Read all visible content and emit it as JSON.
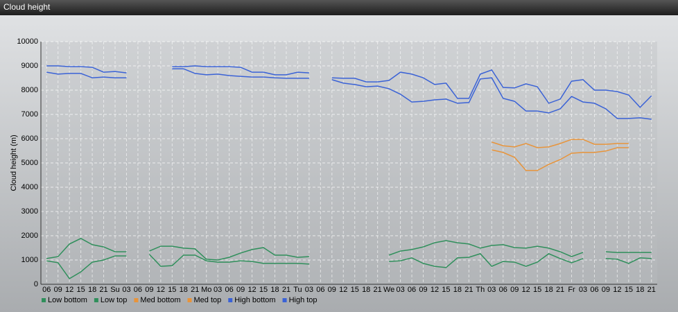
{
  "chart_data": {
    "type": "line",
    "title": "Cloud height",
    "y_label": "Cloud height (m)",
    "categories": [
      "06",
      "09",
      "12",
      "15",
      "18",
      "21",
      "Su",
      "03",
      "06",
      "09",
      "12",
      "15",
      "18",
      "21",
      "Mo",
      "03",
      "06",
      "09",
      "12",
      "15",
      "18",
      "21",
      "Tu",
      "03",
      "06",
      "09",
      "12",
      "15",
      "18",
      "21",
      "We",
      "03",
      "06",
      "09",
      "12",
      "15",
      "18",
      "21",
      "Th",
      "03",
      "06",
      "09",
      "12",
      "15",
      "18",
      "21",
      "Fr",
      "03",
      "06",
      "09",
      "12",
      "15",
      "18",
      "21"
    ],
    "ylim": [
      0,
      10000
    ],
    "yticks": [
      0,
      1000,
      2000,
      3000,
      4000,
      5000,
      6000,
      7000,
      8000,
      9000,
      10000
    ],
    "grid": true,
    "legend": "bottom-left",
    "series": [
      {
        "name": "Low bottom",
        "color": "#2f8f5b",
        "values": [
          970,
          890,
          230,
          510,
          910,
          1000,
          1170,
          1170,
          null,
          1230,
          740,
          770,
          1200,
          1200,
          970,
          910,
          910,
          970,
          940,
          860,
          860,
          860,
          860,
          830,
          null,
          null,
          null,
          null,
          null,
          null,
          940,
          970,
          1090,
          860,
          740,
          690,
          1090,
          1110,
          1260,
          740,
          940,
          910,
          740,
          910,
          1260,
          1060,
          890,
          1060,
          null,
          1060,
          1030,
          860,
          1090,
          1060
        ]
      },
      {
        "name": "Low top",
        "color": "#2f8f5b",
        "values": [
          1060,
          1140,
          1660,
          1890,
          1630,
          1540,
          1340,
          1340,
          null,
          1370,
          1570,
          1570,
          1490,
          1460,
          1030,
          1000,
          1110,
          1290,
          1430,
          1510,
          1200,
          1200,
          1110,
          1140,
          null,
          null,
          null,
          null,
          null,
          null,
          1200,
          1370,
          1430,
          1540,
          1710,
          1800,
          1710,
          1660,
          1490,
          1600,
          1630,
          1510,
          1490,
          1570,
          1490,
          1340,
          1140,
          1310,
          null,
          1340,
          1310,
          1310,
          1310,
          1310
        ]
      },
      {
        "name": "Med bottom",
        "color": "#e8943a",
        "values": [
          null,
          null,
          null,
          null,
          null,
          null,
          null,
          null,
          null,
          null,
          null,
          null,
          null,
          null,
          null,
          null,
          null,
          null,
          null,
          null,
          null,
          null,
          null,
          null,
          null,
          null,
          null,
          null,
          null,
          null,
          null,
          null,
          null,
          null,
          null,
          null,
          null,
          null,
          null,
          5540,
          5430,
          5230,
          4690,
          4690,
          4940,
          5140,
          5400,
          5430,
          5430,
          5490,
          5630,
          5630,
          null,
          null
        ]
      },
      {
        "name": "Med top",
        "color": "#e8943a",
        "values": [
          null,
          null,
          null,
          null,
          null,
          null,
          null,
          null,
          null,
          null,
          null,
          null,
          null,
          null,
          null,
          null,
          null,
          null,
          null,
          null,
          null,
          null,
          null,
          null,
          null,
          null,
          null,
          null,
          null,
          null,
          null,
          null,
          null,
          null,
          null,
          null,
          null,
          null,
          null,
          5860,
          5710,
          5660,
          5800,
          5630,
          5660,
          5800,
          5970,
          5970,
          5770,
          5770,
          5800,
          5800,
          null,
          null
        ]
      },
      {
        "name": "High bottom",
        "color": "#3a62d6",
        "values": [
          8740,
          8660,
          8690,
          8690,
          8510,
          8540,
          8510,
          8510,
          null,
          null,
          null,
          8880,
          8880,
          8690,
          8630,
          8660,
          8600,
          8570,
          8540,
          8540,
          8510,
          8490,
          8490,
          8490,
          null,
          8430,
          8290,
          8230,
          8140,
          8170,
          8060,
          7830,
          7510,
          7540,
          7600,
          7630,
          7460,
          7490,
          8460,
          8510,
          7660,
          7540,
          7140,
          7140,
          7060,
          7230,
          7740,
          7510,
          7460,
          7230,
          6830,
          6830,
          6860,
          6800
        ]
      },
      {
        "name": "High top",
        "color": "#3a62d6",
        "values": [
          9000,
          9000,
          8970,
          8970,
          8940,
          8740,
          8770,
          8710,
          null,
          null,
          null,
          8970,
          8970,
          9000,
          8970,
          8970,
          8970,
          8940,
          8740,
          8740,
          8630,
          8630,
          8740,
          8710,
          null,
          8510,
          8490,
          8490,
          8340,
          8340,
          8400,
          8740,
          8660,
          8510,
          8230,
          8290,
          7660,
          7660,
          8660,
          8830,
          8110,
          8090,
          8260,
          8140,
          7460,
          7630,
          8370,
          8430,
          8000,
          8000,
          7940,
          7800,
          7290,
          7770
        ]
      }
    ]
  }
}
